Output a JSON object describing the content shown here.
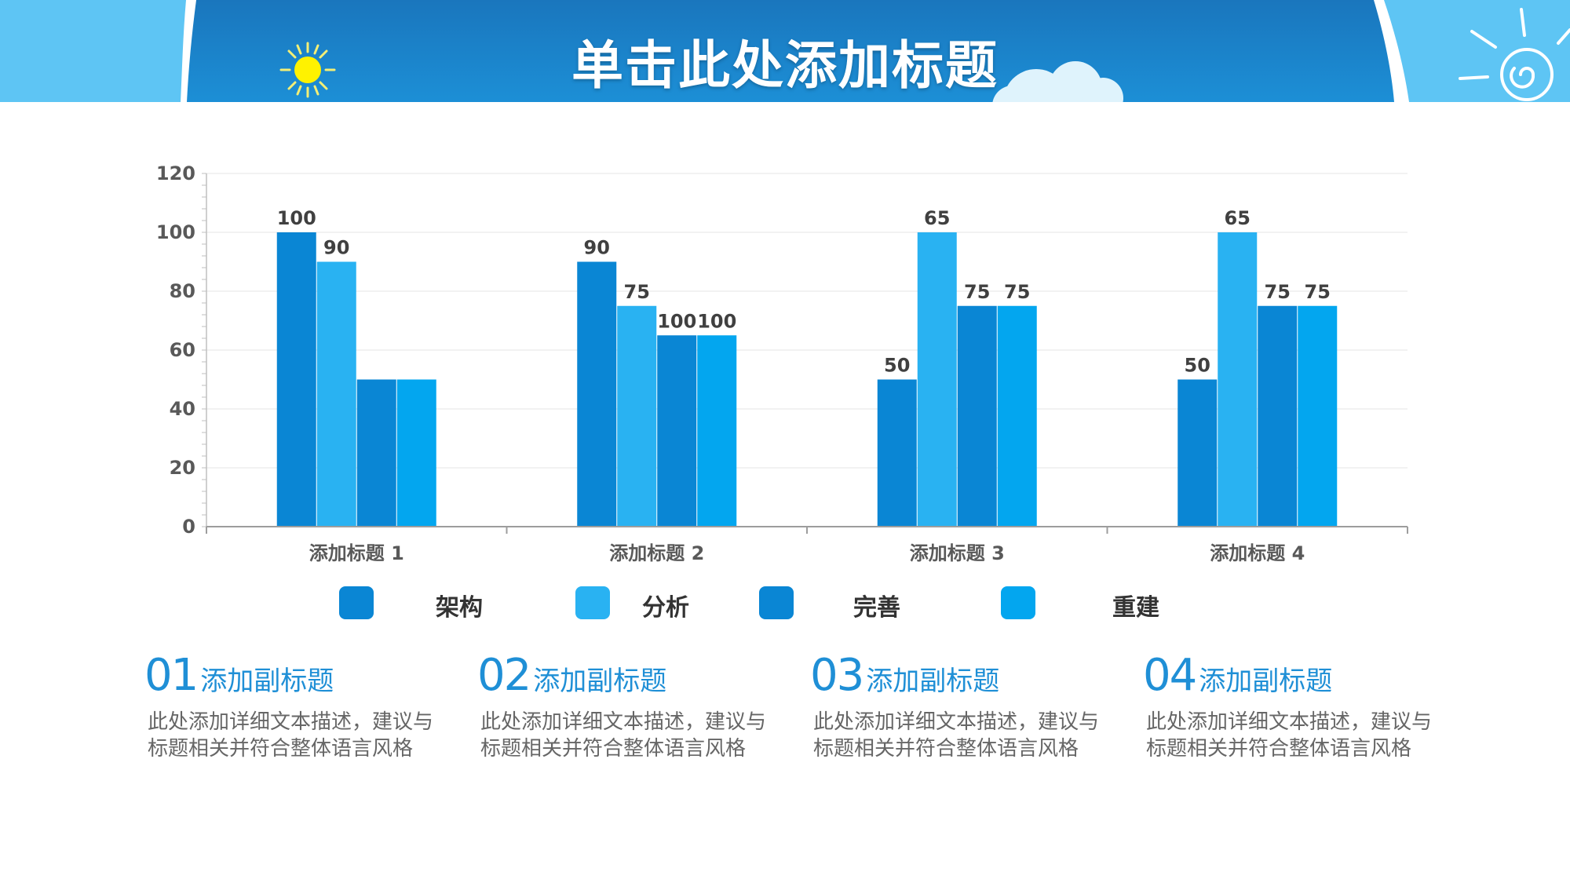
{
  "header": {
    "title": "单击此处添加标题"
  },
  "colors": {
    "banner_light": "#5bc4f3",
    "banner_dark": "#1b86cc",
    "series": [
      "#0a86d4",
      "#29b2f2",
      "#0a86d4",
      "#03a6ef"
    ]
  },
  "chart_data": {
    "type": "bar",
    "categories": [
      "添加标题 1",
      "添加标题 2",
      "添加标题 3",
      "添加标题 4"
    ],
    "series": [
      {
        "name": "架构",
        "values": [
          100,
          90,
          50,
          50
        ]
      },
      {
        "name": "分析",
        "values": [
          90,
          75,
          100,
          100
        ]
      },
      {
        "name": "完善",
        "values": [
          50,
          65,
          75,
          75
        ]
      },
      {
        "name": "重建",
        "values": [
          50,
          65,
          75,
          75
        ]
      }
    ],
    "data_labels": [
      [
        "100",
        "90",
        "",
        ""
      ],
      [
        "90",
        "75",
        "100",
        "100"
      ],
      [
        "50",
        "65",
        "75",
        "75"
      ],
      [
        "50",
        "65",
        "75",
        "75"
      ]
    ],
    "yticks": [
      "0",
      "20",
      "40",
      "60",
      "80",
      "100",
      "120"
    ],
    "ylim": [
      0,
      120
    ],
    "grid": true,
    "legend_position": "bottom"
  },
  "sections": [
    {
      "number": "01",
      "subtitle": "添加副标题",
      "desc_line1": "此处添加详细文本描述，建议与",
      "desc_line2": "标题相关并符合整体语言风格"
    },
    {
      "number": "02",
      "subtitle": "添加副标题",
      "desc_line1": "此处添加详细文本描述，建议与",
      "desc_line2": "标题相关并符合整体语言风格"
    },
    {
      "number": "03",
      "subtitle": "添加副标题",
      "desc_line1": "此处添加详细文本描述，建议与",
      "desc_line2": "标题相关并符合整体语言风格"
    },
    {
      "number": "04",
      "subtitle": "添加副标题",
      "desc_line1": "此处添加详细文本描述，建议与",
      "desc_line2": "标题相关并符合整体语言风格"
    }
  ]
}
